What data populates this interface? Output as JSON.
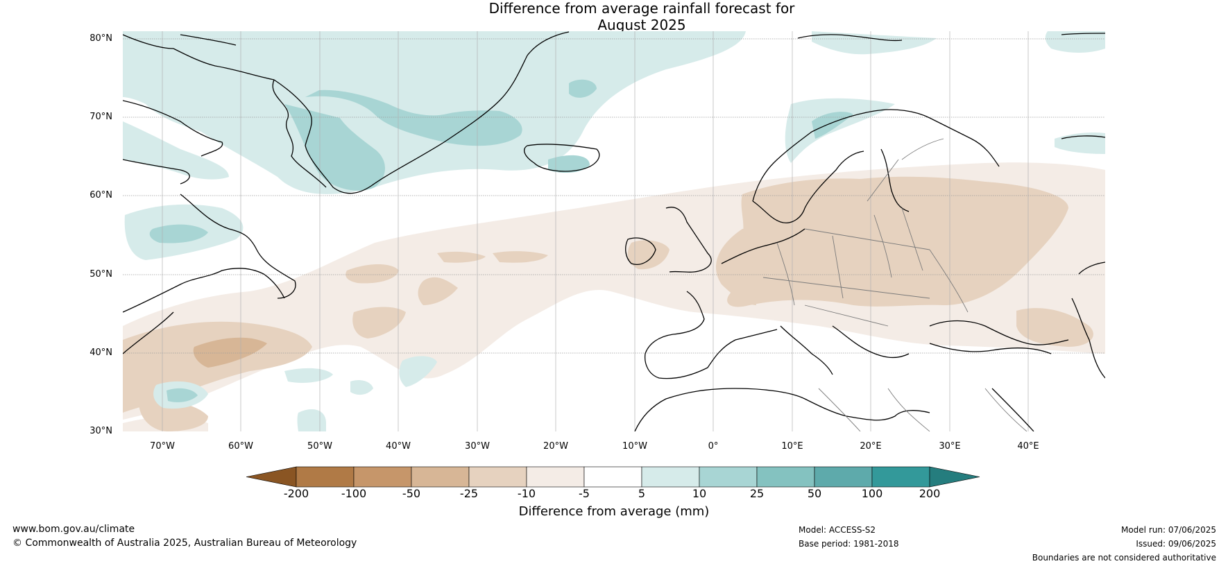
{
  "title": {
    "line1": "Difference from average rainfall forecast for",
    "line2": "August 2025"
  },
  "map": {
    "lat_labels": [
      "80°N",
      "70°N",
      "60°N",
      "50°N",
      "40°N",
      "30°N"
    ],
    "lon_labels": [
      "70°W",
      "60°W",
      "50°W",
      "40°W",
      "30°W",
      "20°W",
      "10°W",
      "0°",
      "10°E",
      "20°E",
      "30°E",
      "40°E"
    ],
    "colors": {
      "land_outline": "#000000",
      "border": "#7a7a7a",
      "gridline": "#9a9a9a"
    }
  },
  "colorbar": {
    "ticks": [
      "-200",
      "-100",
      "-50",
      "-25",
      "-10",
      "-5",
      "5",
      "10",
      "25",
      "50",
      "100",
      "200"
    ],
    "colors": [
      "#8a5523",
      "#b07a46",
      "#c6966a",
      "#d7b696",
      "#e6d2bf",
      "#f4ece6",
      "#ffffff",
      "#d6ebea",
      "#a8d5d4",
      "#84c2c0",
      "#5eaaab",
      "#33999a",
      "#257d7e"
    ],
    "label": "Difference from average (mm)"
  },
  "footer": {
    "website": "www.bom.gov.au/climate",
    "copyright": "© Commonwealth of Australia 2025, Australian Bureau of Meteorology",
    "model": "Model: ACCESS-S2",
    "base_period": "Base period: 1981-2018",
    "model_run": "Model run: 07/06/2025",
    "issued": "Issued: 09/06/2025",
    "disclaimer": "Boundaries are not considered authoritative"
  }
}
